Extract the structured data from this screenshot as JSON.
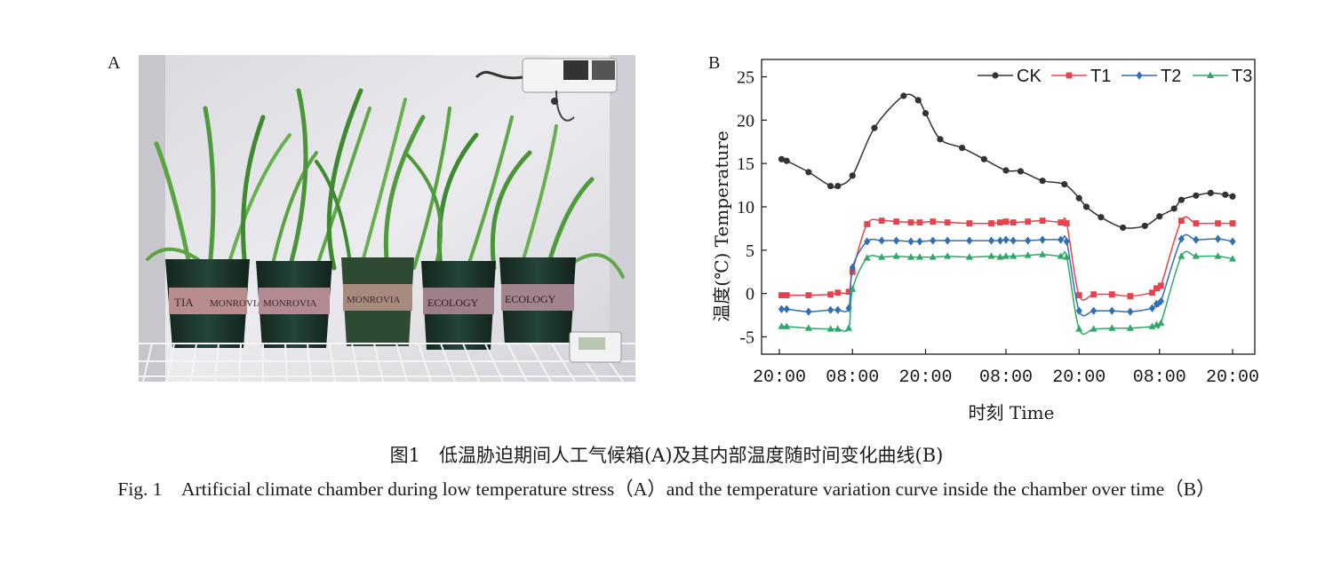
{
  "figure": {
    "panel_a_label": "A",
    "panel_b_label": "B",
    "caption_cn": "图1　低温胁迫期间人工气候箱(A)及其内部温度随时间变化曲线(B)",
    "caption_en": "Fig. 1　Artificial climate chamber during low temperature stress（A）and the temperature variation curve inside the chamber over time（B）"
  },
  "photo": {
    "pot_labels": [
      "TIA",
      "MONROVIA",
      "MONROVIA",
      "MONROVIA",
      "ECOLOGY",
      "ECOLOGY"
    ],
    "colors": {
      "wall": "#e6e6ea",
      "leaf": "#4f9a3c",
      "pot": "#1f3a2c",
      "band": "#b98c8e",
      "rack": "#f2f2f2"
    }
  },
  "chart_data": {
    "type": "line",
    "title": "",
    "xlabel": "时刻 Time",
    "ylabel": "温度(℃) Temperature",
    "ylim": [
      -7,
      27
    ],
    "xlim": [
      0,
      62
    ],
    "yticks": [
      -5,
      0,
      5,
      10,
      15,
      20,
      25
    ],
    "xticks": [
      {
        "x": 0,
        "label": "20:00"
      },
      {
        "x": 10,
        "label": "08:00"
      },
      {
        "x": 20,
        "label": "20:00"
      },
      {
        "x": 31,
        "label": "08:00"
      },
      {
        "x": 41,
        "label": "20:00"
      },
      {
        "x": 52,
        "label": "08:00"
      },
      {
        "x": 62,
        "label": "20:00"
      }
    ],
    "grid": false,
    "legend": "top",
    "series": [
      {
        "name": "CK",
        "color": "#333333",
        "marker": "circle",
        "x": [
          0.3,
          1,
          4,
          7,
          8,
          10,
          13,
          17,
          19,
          20,
          22,
          25,
          28,
          31,
          33,
          36,
          39,
          41,
          42,
          44,
          47,
          50,
          52,
          54,
          55,
          57,
          59,
          61,
          62
        ],
        "y": [
          15.5,
          15.3,
          14,
          12.4,
          12.4,
          13.6,
          19.1,
          22.8,
          22.3,
          20.8,
          17.8,
          16.8,
          15.5,
          14.2,
          14.1,
          13,
          12.6,
          11,
          10,
          8.8,
          7.6,
          7.8,
          8.9,
          9.8,
          10.8,
          11.3,
          11.6,
          11.4,
          11.2
        ]
      },
      {
        "name": "T1",
        "color": "#e8434d",
        "marker": "square",
        "x": [
          0.3,
          1,
          4,
          7,
          8,
          9.5,
          10,
          12,
          14,
          16,
          18,
          19.2,
          21,
          23,
          26,
          29,
          30.2,
          31,
          32,
          34,
          36,
          38.5,
          39.3,
          41,
          43,
          45.5,
          48,
          51,
          51.6,
          52.2,
          55,
          57,
          60,
          62
        ],
        "y": [
          -0.2,
          -0.2,
          -0.2,
          -0.1,
          0.1,
          0.2,
          2.5,
          8,
          8.4,
          8.3,
          8.2,
          8.2,
          8.3,
          8.2,
          8.1,
          8.1,
          8.2,
          8.3,
          8.2,
          8.3,
          8.4,
          8.2,
          8.1,
          -0.2,
          -0.1,
          -0.1,
          -0.3,
          0.1,
          0.6,
          0.9,
          8.4,
          8.1,
          8.1,
          8.1
        ]
      },
      {
        "name": "T2",
        "color": "#2f6fb5",
        "marker": "diamond",
        "x": [
          0.3,
          1,
          4,
          7,
          8,
          9.5,
          10,
          12,
          14,
          16,
          18,
          19.2,
          21,
          23,
          26,
          29,
          30.2,
          31,
          32,
          34,
          36,
          38.5,
          39.3,
          41,
          43,
          45.5,
          48,
          51,
          51.6,
          52.2,
          55,
          57,
          60,
          62
        ],
        "y": [
          -1.8,
          -1.8,
          -2.1,
          -1.9,
          -1.9,
          -1.7,
          3,
          6,
          6.1,
          6.1,
          6,
          6,
          6.1,
          6.1,
          6.1,
          6.1,
          6.1,
          6.2,
          6.1,
          6.1,
          6.2,
          6.2,
          6,
          -2.0,
          -2.0,
          -2.0,
          -2.1,
          -1.7,
          -1.2,
          -0.9,
          6.3,
          6.2,
          6.3,
          6
        ]
      },
      {
        "name": "T3",
        "color": "#2fa86a",
        "marker": "triangle",
        "x": [
          0.3,
          1,
          4,
          7,
          8,
          9.5,
          10,
          12,
          14,
          16,
          18,
          19.2,
          21,
          23,
          26,
          29,
          30.2,
          31,
          32,
          34,
          36,
          38.5,
          39.3,
          41,
          43,
          45.5,
          48,
          51,
          51.6,
          52.2,
          55,
          57,
          60,
          62
        ],
        "y": [
          -3.8,
          -3.8,
          -4.0,
          -4.1,
          -4.1,
          -4.0,
          0.5,
          4.1,
          4.2,
          4.3,
          4.2,
          4.2,
          4.2,
          4.3,
          4.2,
          4.3,
          4.2,
          4.3,
          4.3,
          4.4,
          4.5,
          4.3,
          4.2,
          -4.1,
          -4.1,
          -4.0,
          -4.0,
          -3.8,
          -3.6,
          -3.4,
          4.3,
          4.3,
          4.3,
          4.0
        ]
      }
    ]
  }
}
